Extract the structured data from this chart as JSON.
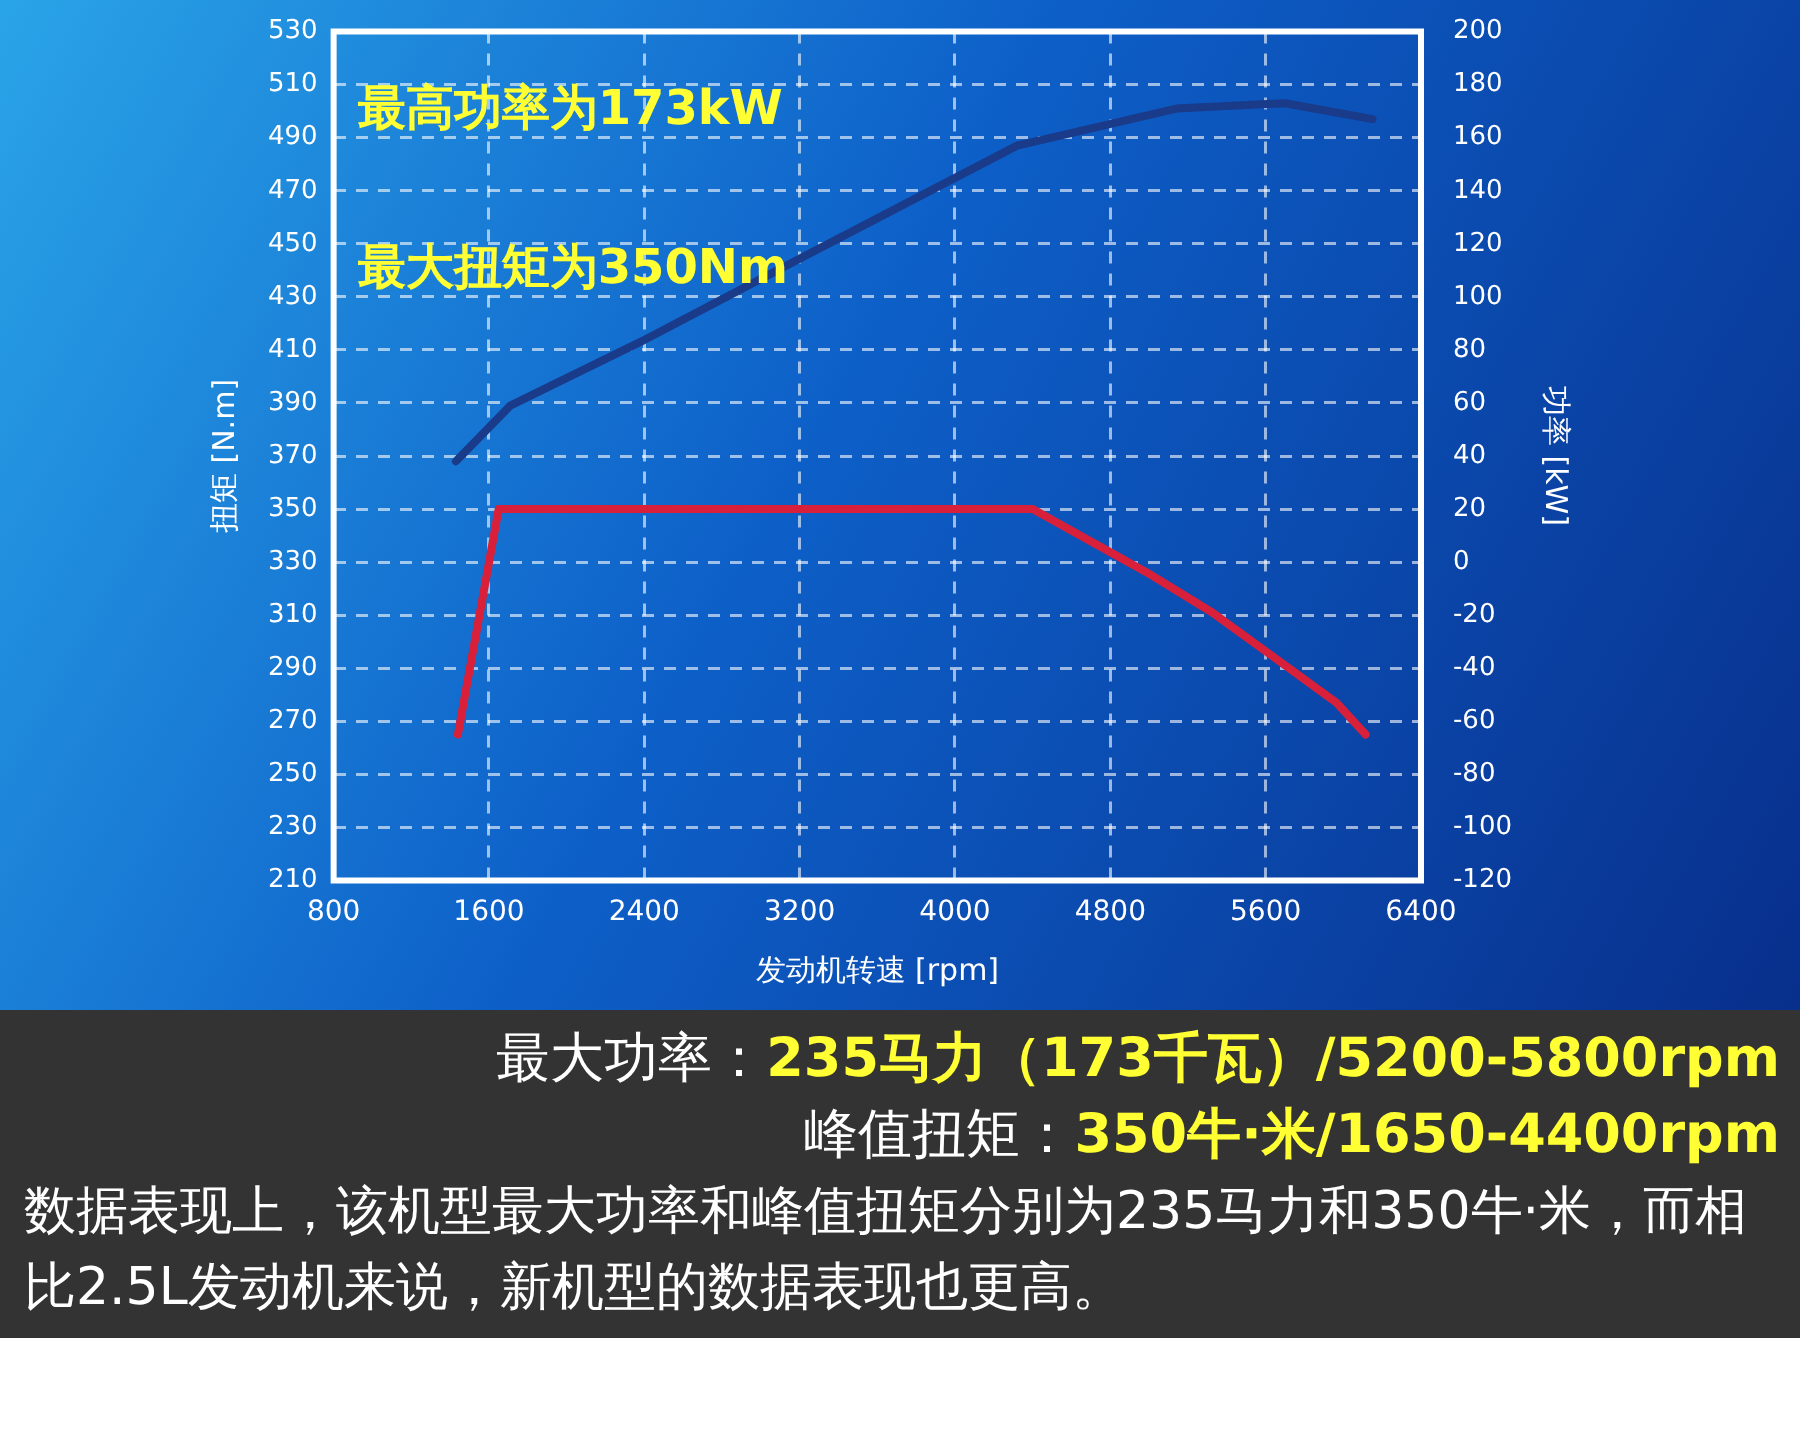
{
  "chart_data": {
    "type": "line",
    "xlabel": "发动机转速 [rpm]",
    "ylabel": "扭矩 [N.m]",
    "y2label": "功率 [kW]",
    "series": [
      {
        "color": "#d8203a",
        "x": [
          1440,
          1650,
          4400,
          4990,
          5325,
          5965,
          6115
        ],
        "values": [
          265,
          350,
          350,
          326,
          311,
          277,
          265
        ]
      },
      {
        "color": "#1a3a8a",
        "axis": "y2",
        "x": [
          1430,
          1710,
          2380,
          3190,
          4320,
          5140,
          5700,
          6150
        ],
        "values": [
          38,
          59,
          83,
          114,
          157,
          171,
          173,
          167
        ]
      }
    ],
    "xlim": [
      800,
      6400
    ],
    "xticks": [
      800,
      1600,
      2400,
      3200,
      4000,
      4800,
      5600,
      6400
    ],
    "ylim": [
      210,
      530
    ],
    "yticks": [
      210,
      230,
      250,
      270,
      290,
      310,
      330,
      350,
      370,
      390,
      410,
      430,
      450,
      470,
      490,
      510,
      530
    ],
    "y2lim": [
      -120,
      200
    ],
    "y2ticks": [
      -120,
      -100,
      -80,
      -60,
      -40,
      -20,
      0,
      20,
      40,
      60,
      80,
      100,
      120,
      140,
      160,
      180,
      200
    ],
    "grid": true,
    "legend": false,
    "marker": "none",
    "line_style": "solid",
    "annotations": [
      "最高功率为173kW",
      "最大扭矩为350Nm",
      "最大功率：235马力（173千瓦）/5200-5800rpm",
      "峰值扭矩：350牛·米/1650-4400rpm",
      "数据表现上，该机型最大功率和峰值扭矩分别为235马力和350牛·米，而相比2.5L发动机来说，新机型的数据表现也更高。"
    ]
  }
}
